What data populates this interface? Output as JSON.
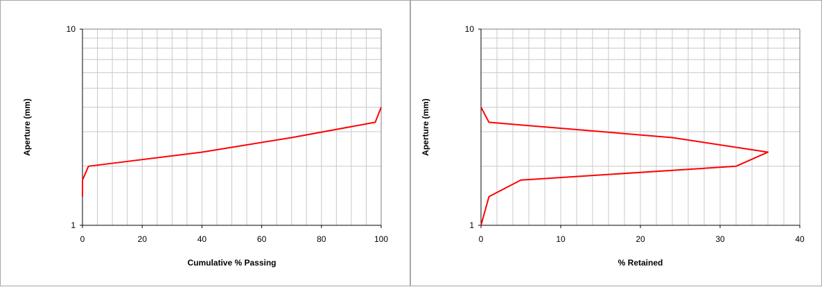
{
  "chart_data": [
    {
      "type": "line",
      "xlabel": "Cumulative % Passing",
      "ylabel": "Aperture (mm)",
      "xlim": [
        0,
        100
      ],
      "ylim": [
        1,
        10
      ],
      "yscale": "log",
      "x_ticks": [
        "0",
        "20",
        "40",
        "60",
        "80",
        "100"
      ],
      "y_ticks": [
        "1",
        "10"
      ],
      "grid": true,
      "color": "#ff0000",
      "series": [
        {
          "x": [
            0,
            0,
            2,
            40,
            70,
            98,
            100
          ],
          "y": [
            1.4,
            1.7,
            2.0,
            2.36,
            2.8,
            3.35,
            4.0
          ]
        }
      ]
    },
    {
      "type": "line",
      "xlabel": "% Retained",
      "ylabel": "Aperture (mm)",
      "xlim": [
        0,
        40
      ],
      "ylim": [
        1,
        10
      ],
      "yscale": "log",
      "x_ticks": [
        "0",
        "10",
        "20",
        "30",
        "40"
      ],
      "y_ticks": [
        "1",
        "10"
      ],
      "grid": true,
      "color": "#ff0000",
      "series": [
        {
          "x": [
            0,
            1,
            24,
            36,
            32,
            5,
            1,
            0
          ],
          "y": [
            4.0,
            3.35,
            2.8,
            2.36,
            2.0,
            1.7,
            1.4,
            1.0
          ]
        }
      ]
    }
  ]
}
